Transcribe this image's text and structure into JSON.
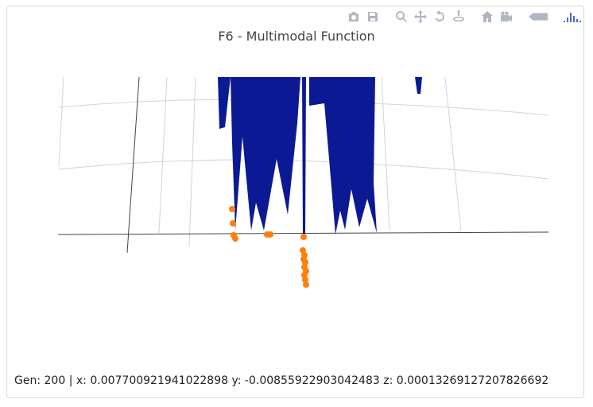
{
  "chart_title": "F6 - Multimodal Function",
  "status": {
    "gen_label": "Gen:",
    "gen": "200",
    "x_label": "x:",
    "x": "0.007700921941022898",
    "y_label": "y:",
    "y": "-0.00855922903042483",
    "z_label": "z:",
    "z": "0.00013269127207826692"
  },
  "modebar": [
    {
      "name": "camera-icon",
      "title": "Download plot as a png"
    },
    {
      "name": "save-icon",
      "title": "Save"
    },
    {
      "name": "zoom-icon",
      "title": "Zoom"
    },
    {
      "name": "pan-icon",
      "title": "Pan"
    },
    {
      "name": "orbit-rotation-icon",
      "title": "Orbital rotation"
    },
    {
      "name": "turntable-icon",
      "title": "Turntable rotation"
    },
    {
      "name": "home-icon",
      "title": "Reset camera"
    },
    {
      "name": "camera-view-icon",
      "title": "Reset camera to last save"
    },
    {
      "name": "hover-toggle-icon",
      "title": "Toggle hover"
    },
    {
      "name": "plotly-logo-icon",
      "title": "Produced with Plotly"
    }
  ],
  "colors": {
    "surface": "#0b1a94",
    "population": "#ff7f0e",
    "grid": "#d4d4d4",
    "axis": "#444444"
  },
  "chart_data": {
    "type": "scatter3d",
    "title": "F6 - Multimodal Function",
    "traces": [
      {
        "kind": "surface",
        "color": "#0b1a94"
      },
      {
        "kind": "scatter",
        "color": "#ff7f0e"
      }
    ]
  }
}
